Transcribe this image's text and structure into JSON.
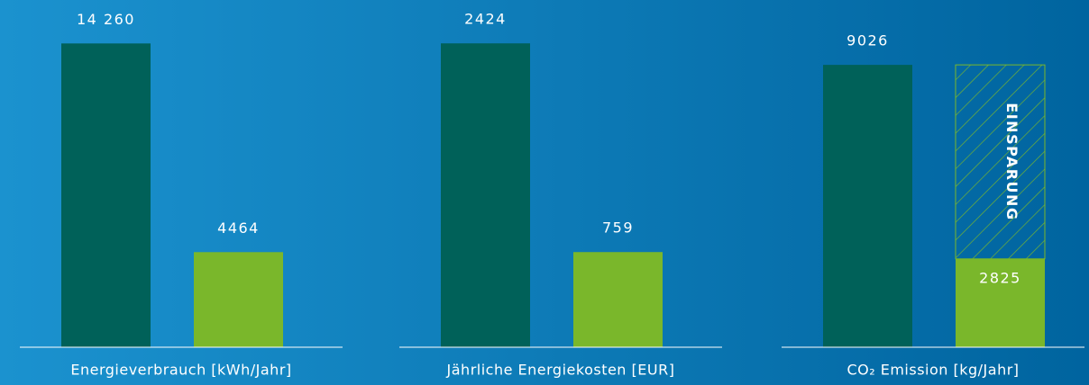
{
  "chart_data": [
    {
      "type": "bar",
      "xlabel": "Energieverbrauch [kWh/Jahr]",
      "values": [
        14260,
        4464
      ],
      "value_labels": [
        "14 260",
        "4464"
      ],
      "colors": [
        "#006159",
        "#7ab72b"
      ],
      "ylim": [
        0,
        16300
      ]
    },
    {
      "type": "bar",
      "xlabel": "Jährliche Energiekosten [EUR]",
      "values": [
        2424,
        759
      ],
      "colors": [
        "#006159",
        "#7ab72b"
      ],
      "ylim": [
        0,
        2770
      ]
    },
    {
      "type": "bar",
      "xlabel": "CO₂ Emission [kg/Jahr]",
      "values": [
        9026,
        2825
      ],
      "colors": [
        "#006159",
        "#7ab72b"
      ],
      "ylim": [
        0,
        11100
      ],
      "annotation": "EINSPARUNG"
    }
  ]
}
